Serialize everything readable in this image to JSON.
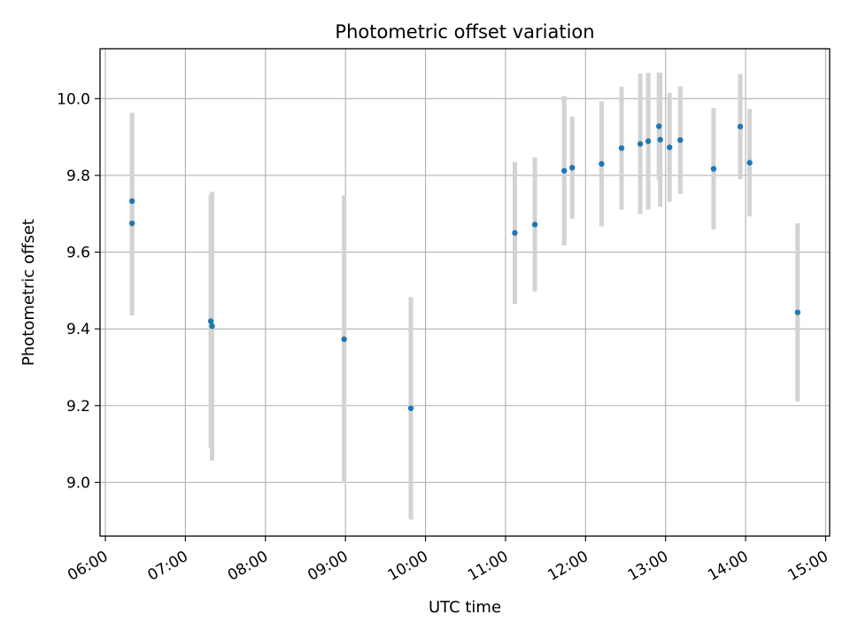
{
  "chart_data": {
    "type": "scatter",
    "title": "Photometric offset variation",
    "xlabel": "UTC time",
    "ylabel": "Photometric offset",
    "xlim": [
      "05:56",
      "15:03"
    ],
    "ylim": [
      8.86,
      10.13
    ],
    "x_ticks": [
      "06:00",
      "07:00",
      "08:00",
      "09:00",
      "10:00",
      "11:00",
      "12:00",
      "13:00",
      "14:00",
      "15:00"
    ],
    "y_ticks": [
      9.0,
      9.2,
      9.4,
      9.6,
      9.8,
      10.0
    ],
    "y_tick_labels": [
      "9.0",
      "9.2",
      "9.4",
      "9.6",
      "9.8",
      "10.0"
    ],
    "grid": true,
    "marker_color": "#1f77b4",
    "errorbar_color": "#d3d3d3",
    "series": [
      {
        "points": [
          {
            "time": "06:20",
            "y": 9.675,
            "err": 0.24
          },
          {
            "time": "06:20",
            "y": 9.733,
            "err": 0.23
          },
          {
            "time": "07:19",
            "y": 9.42,
            "err": 0.33
          },
          {
            "time": "07:20",
            "y": 9.407,
            "err": 0.35
          },
          {
            "time": "08:59",
            "y": 9.373,
            "err": 0.375
          },
          {
            "time": "09:49",
            "y": 9.193,
            "err": 0.29
          },
          {
            "time": "11:07",
            "y": 9.65,
            "err": 0.185
          },
          {
            "time": "11:22",
            "y": 9.672,
            "err": 0.175
          },
          {
            "time": "11:44",
            "y": 9.812,
            "err": 0.195
          },
          {
            "time": "11:50",
            "y": 9.82,
            "err": 0.133
          },
          {
            "time": "12:12",
            "y": 9.83,
            "err": 0.163
          },
          {
            "time": "12:27",
            "y": 9.871,
            "err": 0.16
          },
          {
            "time": "12:41",
            "y": 9.882,
            "err": 0.183
          },
          {
            "time": "12:47",
            "y": 9.889,
            "err": 0.178
          },
          {
            "time": "12:55",
            "y": 9.928,
            "err": 0.14
          },
          {
            "time": "12:56",
            "y": 9.893,
            "err": 0.175
          },
          {
            "time": "13:03",
            "y": 9.873,
            "err": 0.142
          },
          {
            "time": "13:11",
            "y": 9.892,
            "err": 0.14
          },
          {
            "time": "13:36",
            "y": 9.817,
            "err": 0.158
          },
          {
            "time": "13:56",
            "y": 9.927,
            "err": 0.137
          },
          {
            "time": "14:03",
            "y": 9.833,
            "err": 0.14
          },
          {
            "time": "14:39",
            "y": 9.443,
            "err": 0.232
          }
        ]
      }
    ]
  }
}
